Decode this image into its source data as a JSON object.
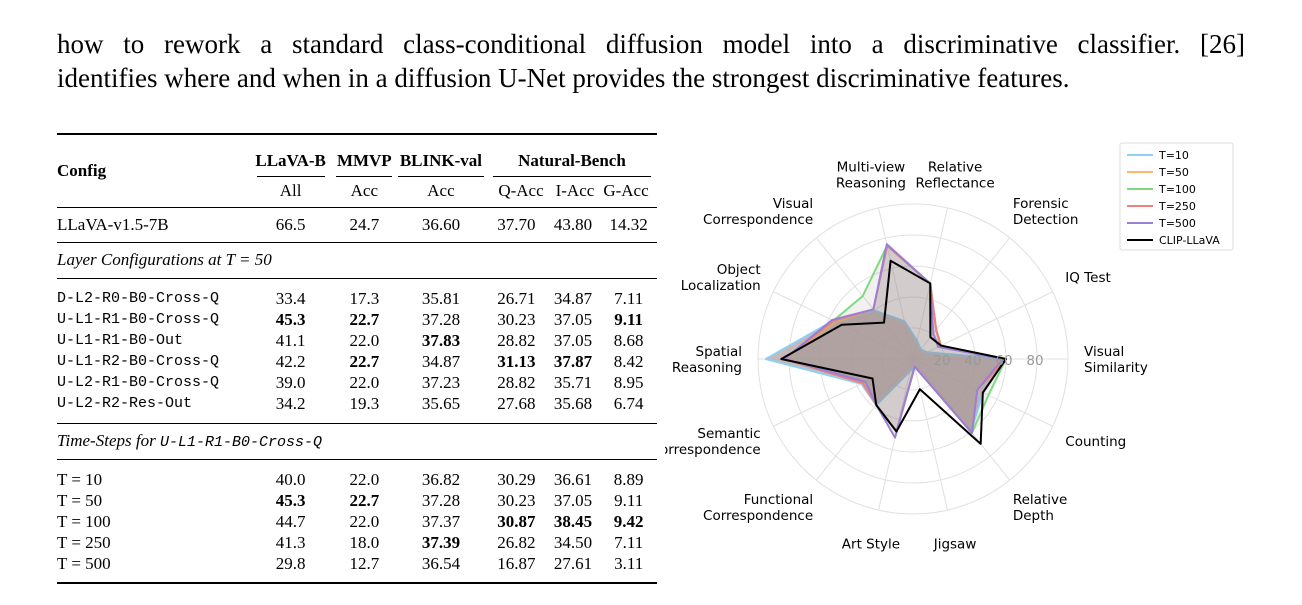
{
  "paragraph": {
    "line1": "how to rework a standard class-conditional diffusion model into a discriminative classifier. [26]",
    "line2": "identifies where and when in a diffusion U-Net provides the strongest discriminative features."
  },
  "table": {
    "config_header": "Config",
    "groups": [
      "LLaVA-B",
      "MMVP",
      "BLINK-val",
      "Natural-Bench"
    ],
    "subheaders": [
      "All",
      "Acc",
      "Acc",
      "Q-Acc",
      "I-Acc",
      "G-Acc"
    ],
    "baseline": {
      "name": "LLaVA-v1.5-7B",
      "values": [
        "66.5",
        "24.7",
        "36.60",
        "37.70",
        "43.80",
        "14.32"
      ]
    },
    "section1_title": "Layer Configurations at T = 50",
    "section1_rows": [
      {
        "name": "D-L2-R0-B0-Cross-Q",
        "values": [
          "33.4",
          "17.3",
          "35.81",
          "26.71",
          "34.87",
          "7.11"
        ],
        "bold": [
          false,
          false,
          false,
          false,
          false,
          false
        ]
      },
      {
        "name": "U-L1-R1-B0-Cross-Q",
        "values": [
          "45.3",
          "22.7",
          "37.28",
          "30.23",
          "37.05",
          "9.11"
        ],
        "bold": [
          true,
          true,
          false,
          false,
          false,
          true
        ]
      },
      {
        "name": "U-L1-R1-B0-Out",
        "values": [
          "41.1",
          "22.0",
          "37.83",
          "28.82",
          "37.05",
          "8.68"
        ],
        "bold": [
          false,
          false,
          true,
          false,
          false,
          false
        ]
      },
      {
        "name": "U-L1-R2-B0-Cross-Q",
        "values": [
          "42.2",
          "22.7",
          "34.87",
          "31.13",
          "37.87",
          "8.42"
        ],
        "bold": [
          false,
          true,
          false,
          true,
          true,
          false
        ]
      },
      {
        "name": "U-L2-R1-B0-Cross-Q",
        "values": [
          "39.0",
          "22.0",
          "37.23",
          "28.82",
          "35.71",
          "8.95"
        ],
        "bold": [
          false,
          false,
          false,
          false,
          false,
          false
        ]
      },
      {
        "name": "U-L2-R2-Res-Out",
        "values": [
          "34.2",
          "19.3",
          "35.65",
          "27.68",
          "35.68",
          "6.74"
        ],
        "bold": [
          false,
          false,
          false,
          false,
          false,
          false
        ]
      }
    ],
    "section2_title_prefix": "Time-Steps for ",
    "section2_title_code": "U-L1-R1-B0-Cross-Q",
    "section2_rows": [
      {
        "name": "T = 10",
        "values": [
          "40.0",
          "22.0",
          "36.82",
          "30.29",
          "36.61",
          "8.89"
        ],
        "bold": [
          false,
          false,
          false,
          false,
          false,
          false
        ]
      },
      {
        "name": "T = 50",
        "values": [
          "45.3",
          "22.7",
          "37.28",
          "30.23",
          "37.05",
          "9.11"
        ],
        "bold": [
          true,
          true,
          false,
          false,
          false,
          false
        ]
      },
      {
        "name": "T = 100",
        "values": [
          "44.7",
          "22.0",
          "37.37",
          "30.87",
          "38.45",
          "9.42"
        ],
        "bold": [
          false,
          false,
          false,
          true,
          true,
          true
        ]
      },
      {
        "name": "T = 250",
        "values": [
          "41.3",
          "18.0",
          "37.39",
          "26.82",
          "34.50",
          "7.11"
        ],
        "bold": [
          false,
          false,
          true,
          false,
          false,
          false
        ]
      },
      {
        "name": "T = 500",
        "values": [
          "29.8",
          "12.7",
          "36.54",
          "16.87",
          "27.61",
          "3.11"
        ],
        "bold": [
          false,
          false,
          false,
          false,
          false,
          false
        ]
      }
    ]
  },
  "chart_data": {
    "type": "radar",
    "categories": [
      "Visual\nSimilarity",
      "IQ Test",
      "Forensic\nDetection",
      "Relative\nReflectance",
      "Multi-view\nReasoning",
      "Visual\nCorrespondence",
      "Object\nLocalization",
      "Spatial\nReasoning",
      "Semantic\nCorrespondence",
      "Functional\nCorrespondence",
      "Art Style",
      "Jigsaw",
      "Relative\nDepth",
      "Counting"
    ],
    "rlim": [
      0,
      100
    ],
    "rticks": [
      20,
      40,
      60,
      80
    ],
    "legend_position": "top-right",
    "series": [
      {
        "name": "T=10",
        "color": "#8fd0f3",
        "values": [
          60,
          10,
          8,
          12,
          25,
          40,
          57,
          95,
          37,
          38,
          8,
          5,
          60,
          50
        ]
      },
      {
        "name": "T=50",
        "color": "#f9b86a",
        "values": [
          58,
          20,
          24,
          50,
          75,
          41,
          55,
          83,
          36,
          38,
          48,
          5,
          61,
          46
        ]
      },
      {
        "name": "T=100",
        "color": "#7fda7f",
        "values": [
          60,
          20,
          24,
          50,
          75,
          52,
          57,
          83,
          36,
          38,
          48,
          5,
          61,
          54
        ]
      },
      {
        "name": "T=250",
        "color": "#f27f7f",
        "values": [
          60,
          20,
          24,
          50,
          75,
          41,
          57,
          83,
          36,
          38,
          48,
          5,
          61,
          46
        ]
      },
      {
        "name": "T=500",
        "color": "#9b7fd6",
        "values": [
          58,
          18,
          21,
          50,
          76,
          41,
          58,
          83,
          34,
          38,
          52,
          5,
          61,
          46
        ]
      },
      {
        "name": "CLIP-LLaVA",
        "color": "#000000",
        "values": [
          60,
          20,
          18,
          50,
          65,
          30,
          51,
          85,
          29,
          38,
          48,
          20,
          70,
          50
        ]
      }
    ],
    "fill_color": "#b8a8a8"
  }
}
